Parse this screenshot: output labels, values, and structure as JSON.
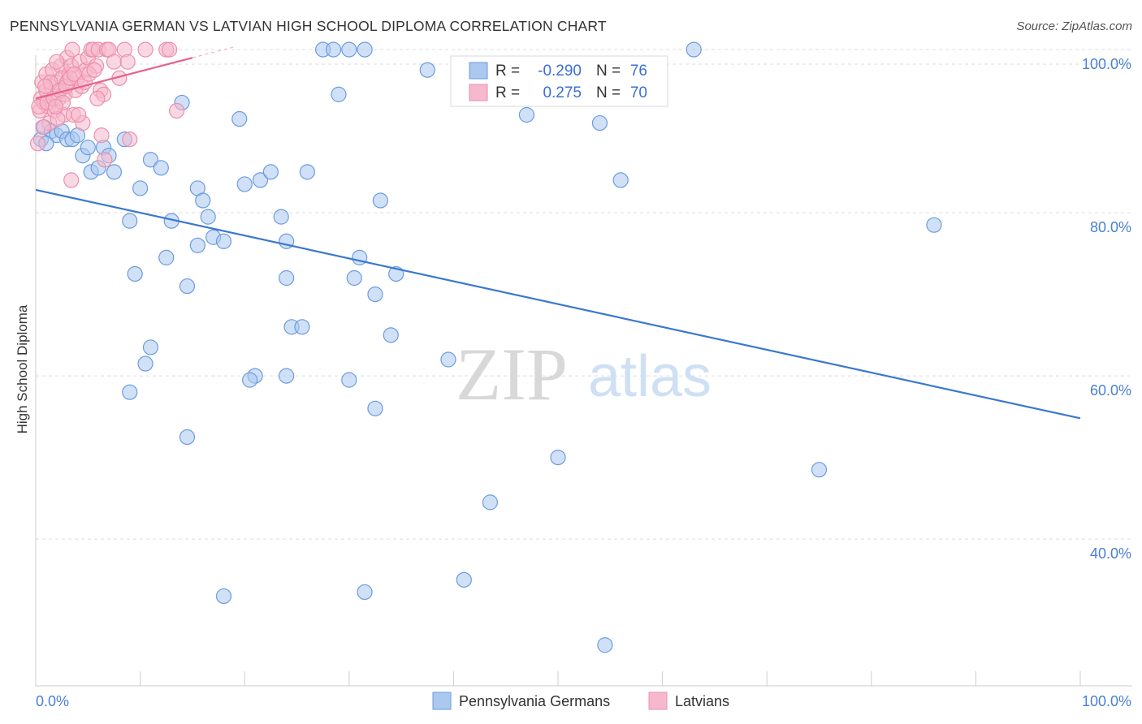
{
  "title": "PENNSYLVANIA GERMAN VS LATVIAN HIGH SCHOOL DIPLOMA CORRELATION CHART",
  "source": "Source: ZipAtlas.com",
  "colors": {
    "blue_fill": "#aac8f0",
    "blue_stroke": "#6c9bde",
    "blue_line": "#3a78d0",
    "pink_fill": "#f6b8cc",
    "pink_stroke": "#ec8fab",
    "pink_line": "#e8608a",
    "grid": "#dddddd",
    "axis_text": "#4a7fd4"
  },
  "legend": {
    "rows": [
      {
        "r_label": "R =",
        "r_value": "-0.290",
        "n_label": "N =",
        "n_value": "76"
      },
      {
        "r_label": "R =",
        "r_value": "0.275",
        "n_label": "N =",
        "n_value": "70"
      }
    ]
  },
  "chart_data": {
    "type": "scatter",
    "title": "PENNSYLVANIA GERMAN VS LATVIAN HIGH SCHOOL DIPLOMA CORRELATION CHART",
    "xlabel": "",
    "ylabel": "High School Diploma",
    "xlim": [
      0,
      100
    ],
    "ylim": [
      22,
      102
    ],
    "x_tick_labels": [
      "0.0%",
      "100.0%"
    ],
    "y_ticks": [
      40,
      60,
      80,
      100
    ],
    "y_tick_labels": [
      "40.0%",
      "60.0%",
      "80.0%",
      "100.0%"
    ],
    "grid": true,
    "legend_position": "bottom-center",
    "series": [
      {
        "name": "Pennsylvania Germans",
        "color": "#aac8f0",
        "trend": {
          "x": [
            0,
            100
          ],
          "y": [
            82.8,
            54.8
          ]
        },
        "points": [
          [
            0.5,
            89.0
          ],
          [
            0.8,
            90.5
          ],
          [
            1.5,
            90.0
          ],
          [
            2.0,
            89.5
          ],
          [
            2.5,
            90.0
          ],
          [
            3.0,
            89.0
          ],
          [
            3.5,
            89.0
          ],
          [
            4.0,
            89.5
          ],
          [
            4.5,
            87.0
          ],
          [
            5.0,
            88.0
          ],
          [
            5.3,
            85.0
          ],
          [
            6.0,
            85.5
          ],
          [
            6.5,
            88.0
          ],
          [
            7.0,
            87.0
          ],
          [
            7.5,
            85.0
          ],
          [
            8.5,
            89.0
          ],
          [
            10.0,
            83.0
          ],
          [
            11.0,
            86.5
          ],
          [
            12.0,
            85.5
          ],
          [
            14.0,
            93.5
          ],
          [
            15.5,
            83.0
          ],
          [
            16.0,
            81.5
          ],
          [
            16.5,
            79.5
          ],
          [
            19.5,
            91.5
          ],
          [
            20.0,
            83.5
          ],
          [
            21.5,
            84.0
          ],
          [
            22.5,
            85.0
          ],
          [
            23.5,
            79.5
          ],
          [
            24.0,
            76.5
          ],
          [
            27.5,
            100.0
          ],
          [
            28.5,
            100.0
          ],
          [
            30.0,
            100.0
          ],
          [
            29.0,
            94.5
          ],
          [
            31.5,
            100.0
          ],
          [
            26.0,
            85.0
          ],
          [
            9.0,
            79.0
          ],
          [
            13.0,
            79.0
          ],
          [
            17.0,
            77.0
          ],
          [
            18.0,
            76.5
          ],
          [
            15.5,
            76.0
          ],
          [
            12.5,
            74.5
          ],
          [
            9.5,
            72.5
          ],
          [
            14.5,
            71.0
          ],
          [
            24.0,
            72.0
          ],
          [
            31.0,
            74.5
          ],
          [
            30.5,
            72.0
          ],
          [
            32.5,
            70.0
          ],
          [
            34.5,
            72.5
          ],
          [
            33.0,
            81.5
          ],
          [
            37.5,
            97.5
          ],
          [
            47.0,
            92.0
          ],
          [
            54.0,
            91.0
          ],
          [
            56.0,
            84.0
          ],
          [
            63.0,
            100.0
          ],
          [
            86.0,
            78.5
          ],
          [
            24.5,
            66.0
          ],
          [
            25.5,
            66.0
          ],
          [
            34.0,
            65.0
          ],
          [
            39.5,
            62.0
          ],
          [
            11.0,
            63.5
          ],
          [
            10.5,
            61.5
          ],
          [
            21.0,
            60.0
          ],
          [
            20.5,
            59.5
          ],
          [
            24.0,
            60.0
          ],
          [
            30.0,
            59.5
          ],
          [
            9.0,
            58.0
          ],
          [
            32.5,
            56.0
          ],
          [
            14.5,
            52.5
          ],
          [
            50.0,
            50.0
          ],
          [
            75.0,
            48.5
          ],
          [
            43.5,
            44.5
          ],
          [
            18.0,
            33.0
          ],
          [
            31.5,
            33.5
          ],
          [
            41.0,
            35.0
          ],
          [
            54.5,
            27.0
          ],
          [
            1.0,
            88.5
          ]
        ]
      },
      {
        "name": "Latvians",
        "color": "#f6b8cc",
        "trend": {
          "x": [
            0,
            15
          ],
          "y": [
            94.0,
            99.0
          ]
        },
        "points": [
          [
            0.2,
            88.5
          ],
          [
            0.4,
            92.5
          ],
          [
            0.5,
            94.0
          ],
          [
            0.6,
            96.0
          ],
          [
            0.8,
            93.5
          ],
          [
            1.0,
            95.0
          ],
          [
            1.0,
            97.0
          ],
          [
            1.2,
            93.0
          ],
          [
            1.3,
            91.0
          ],
          [
            1.5,
            95.5
          ],
          [
            1.6,
            97.5
          ],
          [
            1.8,
            92.5
          ],
          [
            2.0,
            96.0
          ],
          [
            2.2,
            94.0
          ],
          [
            2.4,
            98.0
          ],
          [
            2.5,
            96.5
          ],
          [
            2.7,
            92.0
          ],
          [
            2.8,
            94.5
          ],
          [
            3.0,
            96.0
          ],
          [
            3.0,
            99.0
          ],
          [
            3.2,
            97.0
          ],
          [
            3.4,
            98.0
          ],
          [
            3.5,
            100.0
          ],
          [
            3.6,
            92.0
          ],
          [
            3.8,
            95.0
          ],
          [
            4.0,
            96.5
          ],
          [
            4.2,
            98.5
          ],
          [
            4.5,
            91.0
          ],
          [
            4.8,
            97.5
          ],
          [
            5.0,
            99.0
          ],
          [
            5.3,
            100.0
          ],
          [
            5.5,
            100.0
          ],
          [
            5.8,
            98.0
          ],
          [
            6.0,
            100.0
          ],
          [
            6.2,
            95.0
          ],
          [
            6.5,
            94.5
          ],
          [
            6.8,
            100.0
          ],
          [
            7.0,
            100.0
          ],
          [
            7.5,
            98.5
          ],
          [
            8.0,
            96.5
          ],
          [
            8.5,
            100.0
          ],
          [
            8.8,
            98.5
          ],
          [
            9.0,
            89.0
          ],
          [
            10.5,
            100.0
          ],
          [
            12.5,
            100.0
          ],
          [
            13.5,
            92.5
          ],
          [
            0.3,
            93.0
          ],
          [
            0.7,
            90.5
          ],
          [
            1.1,
            93.5
          ],
          [
            1.4,
            96.0
          ],
          [
            1.7,
            94.0
          ],
          [
            2.1,
            91.5
          ],
          [
            2.3,
            95.0
          ],
          [
            2.6,
            93.5
          ],
          [
            2.9,
            95.5
          ],
          [
            3.3,
            96.5
          ],
          [
            3.7,
            97.0
          ],
          [
            4.1,
            92.0
          ],
          [
            4.4,
            95.5
          ],
          [
            4.7,
            96.0
          ],
          [
            5.1,
            97.0
          ],
          [
            5.6,
            97.5
          ],
          [
            5.9,
            94.0
          ],
          [
            6.3,
            89.5
          ],
          [
            6.6,
            86.5
          ],
          [
            3.4,
            84.0
          ],
          [
            12.8,
            100.0
          ],
          [
            2.0,
            98.5
          ],
          [
            1.9,
            93.0
          ],
          [
            0.9,
            95.5
          ]
        ]
      }
    ]
  },
  "bottom_legend": {
    "items": [
      {
        "label": "Pennsylvania Germans"
      },
      {
        "label": "Latvians"
      }
    ]
  },
  "watermark": {
    "zip": "ZIP",
    "atlas": "atlas"
  }
}
